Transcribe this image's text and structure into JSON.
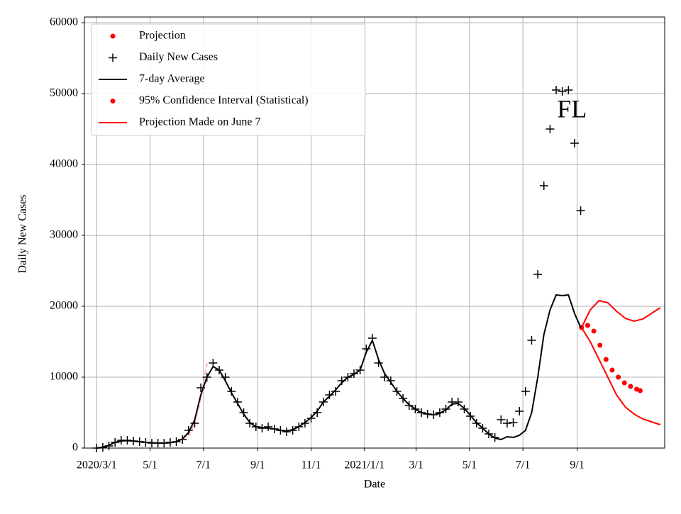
{
  "chart_data": {
    "type": "line",
    "annotation": "FL",
    "annotation_x": "2021-08-26",
    "annotation_y": 47500,
    "x_label": "Date",
    "y_label": "Daily New Cases",
    "xlim": [
      "2020-02-16",
      "2021-12-10"
    ],
    "ylim": [
      0,
      60800
    ],
    "yticks": [
      0,
      10000,
      20000,
      30000,
      40000,
      50000,
      60000
    ],
    "xticks": [
      {
        "value": "2020-03-01",
        "label": "2020/3/1"
      },
      {
        "value": "2020-05-01",
        "label": "5/1"
      },
      {
        "value": "2020-07-01",
        "label": "7/1"
      },
      {
        "value": "2020-09-01",
        "label": "9/1"
      },
      {
        "value": "2020-11-01",
        "label": "11/1"
      },
      {
        "value": "2021-01-01",
        "label": "2021/1/1"
      },
      {
        "value": "2021-03-01",
        "label": "3/1"
      },
      {
        "value": "2021-05-01",
        "label": "5/1"
      },
      {
        "value": "2021-07-01",
        "label": "7/1"
      },
      {
        "value": "2021-09-01",
        "label": "9/1"
      }
    ],
    "grid": true,
    "legend": "upper left",
    "series": [
      {
        "name": "Projection",
        "color": "#ff0000",
        "marker": "dot",
        "x": [
          "2021-09-06",
          "2021-09-13",
          "2021-09-20",
          "2021-09-27",
          "2021-10-04",
          "2021-10-11",
          "2021-10-18",
          "2021-10-25",
          "2021-11-01",
          "2021-11-08",
          "2021-11-12"
        ],
        "values": [
          17000,
          17300,
          16500,
          14500,
          12500,
          11000,
          10000,
          9200,
          8700,
          8300,
          8100
        ]
      },
      {
        "name": "Daily New Cases",
        "color": "#000000",
        "marker": "plus",
        "x": [
          "2020-03-01",
          "2020-03-08",
          "2020-03-15",
          "2020-03-22",
          "2020-03-29",
          "2020-04-05",
          "2020-04-12",
          "2020-04-19",
          "2020-04-26",
          "2020-05-03",
          "2020-05-10",
          "2020-05-17",
          "2020-05-24",
          "2020-05-31",
          "2020-06-07",
          "2020-06-14",
          "2020-06-21",
          "2020-06-28",
          "2020-07-05",
          "2020-07-12",
          "2020-07-19",
          "2020-07-26",
          "2020-08-02",
          "2020-08-09",
          "2020-08-16",
          "2020-08-23",
          "2020-08-30",
          "2020-09-06",
          "2020-09-13",
          "2020-09-20",
          "2020-09-27",
          "2020-10-04",
          "2020-10-11",
          "2020-10-18",
          "2020-10-25",
          "2020-11-01",
          "2020-11-08",
          "2020-11-15",
          "2020-11-22",
          "2020-11-29",
          "2020-12-06",
          "2020-12-13",
          "2020-12-20",
          "2020-12-27",
          "2021-01-03",
          "2021-01-10",
          "2021-01-17",
          "2021-01-24",
          "2021-01-31",
          "2021-02-07",
          "2021-02-14",
          "2021-02-21",
          "2021-02-28",
          "2021-03-07",
          "2021-03-14",
          "2021-03-21",
          "2021-03-28",
          "2021-04-04",
          "2021-04-11",
          "2021-04-18",
          "2021-04-25",
          "2021-05-02",
          "2021-05-09",
          "2021-05-16",
          "2021-05-23",
          "2021-05-30",
          "2021-06-06",
          "2021-06-13",
          "2021-06-20",
          "2021-06-27",
          "2021-07-04",
          "2021-07-11",
          "2021-07-18",
          "2021-07-25",
          "2021-08-01",
          "2021-08-08",
          "2021-08-15",
          "2021-08-22",
          "2021-08-29",
          "2021-09-05"
        ],
        "values": [
          0,
          100,
          300,
          800,
          1100,
          1100,
          1000,
          900,
          800,
          700,
          700,
          700,
          800,
          900,
          1200,
          2500,
          3500,
          8500,
          10000,
          12000,
          11000,
          10000,
          8000,
          6500,
          5000,
          3500,
          3000,
          2800,
          3000,
          2700,
          2500,
          2300,
          2500,
          3000,
          3500,
          4200,
          5000,
          6500,
          7500,
          8000,
          9500,
          10000,
          10500,
          11000,
          14000,
          15500,
          12000,
          10000,
          9500,
          8000,
          7000,
          6000,
          5500,
          5000,
          4800,
          4700,
          5000,
          5500,
          6500,
          6500,
          5500,
          4500,
          3500,
          2800,
          2000,
          1500,
          4000,
          3500,
          3600,
          5200,
          8000,
          15200,
          24500,
          37000,
          45000,
          50500,
          50300,
          50500,
          43000,
          33500
        ]
      },
      {
        "name": "7-day Average",
        "color": "#000000",
        "marker": "line",
        "x": [
          "2020-03-01",
          "2020-03-08",
          "2020-03-15",
          "2020-03-22",
          "2020-03-29",
          "2020-04-05",
          "2020-04-12",
          "2020-04-19",
          "2020-04-26",
          "2020-05-03",
          "2020-05-10",
          "2020-05-17",
          "2020-05-24",
          "2020-05-31",
          "2020-06-07",
          "2020-06-14",
          "2020-06-21",
          "2020-06-28",
          "2020-07-05",
          "2020-07-12",
          "2020-07-19",
          "2020-07-26",
          "2020-08-02",
          "2020-08-09",
          "2020-08-16",
          "2020-08-23",
          "2020-08-30",
          "2020-09-06",
          "2020-09-13",
          "2020-09-20",
          "2020-09-27",
          "2020-10-04",
          "2020-10-11",
          "2020-10-18",
          "2020-10-25",
          "2020-11-01",
          "2020-11-08",
          "2020-11-15",
          "2020-11-22",
          "2020-11-29",
          "2020-12-06",
          "2020-12-13",
          "2020-12-20",
          "2020-12-27",
          "2021-01-03",
          "2021-01-10",
          "2021-01-17",
          "2021-01-24",
          "2021-01-31",
          "2021-02-07",
          "2021-02-14",
          "2021-02-21",
          "2021-02-28",
          "2021-03-07",
          "2021-03-14",
          "2021-03-21",
          "2021-03-28",
          "2021-04-04",
          "2021-04-11",
          "2021-04-18",
          "2021-04-25",
          "2021-05-02",
          "2021-05-09",
          "2021-05-16",
          "2021-05-23",
          "2021-05-30",
          "2021-06-06",
          "2021-06-13",
          "2021-06-20",
          "2021-06-27",
          "2021-07-04",
          "2021-07-11",
          "2021-07-18",
          "2021-07-25",
          "2021-08-01",
          "2021-08-08",
          "2021-08-15",
          "2021-08-22",
          "2021-08-29",
          "2021-09-05"
        ],
        "values": [
          0,
          100,
          400,
          800,
          1000,
          1050,
          1000,
          900,
          800,
          750,
          700,
          700,
          750,
          900,
          1300,
          2200,
          4000,
          7500,
          10000,
          11500,
          11000,
          9500,
          7800,
          6300,
          4800,
          3600,
          3000,
          2900,
          2800,
          2700,
          2500,
          2400,
          2600,
          3000,
          3600,
          4300,
          5200,
          6500,
          7300,
          8200,
          9200,
          10000,
          10400,
          11000,
          13500,
          15200,
          12500,
          10500,
          9300,
          8000,
          7000,
          6100,
          5500,
          5000,
          4800,
          4700,
          4900,
          5400,
          6200,
          6300,
          5600,
          4600,
          3600,
          2800,
          2000,
          1400,
          1200,
          1600,
          1500,
          1800,
          2500,
          5000,
          10000,
          16000,
          19500,
          21600,
          21500,
          21600,
          19000,
          17000
        ]
      },
      {
        "name": "95% Confidence Interval (Statistical)",
        "color": "#ff0000",
        "marker": "dot",
        "x": [
          "2021-09-06",
          "2021-09-16",
          "2021-09-26",
          "2021-10-06",
          "2021-10-16",
          "2021-10-26",
          "2021-11-05",
          "2021-11-15",
          "2021-11-25",
          "2021-12-05"
        ],
        "values": [
          17000,
          19500,
          20800,
          20500,
          19300,
          18300,
          17900,
          18200,
          19000,
          19800
        ],
        "lower": [
          17000,
          15000,
          12500,
          10000,
          7500,
          5800,
          4800,
          4100,
          3700,
          3300
        ]
      },
      {
        "name": "Projection Made on June 7",
        "color": "#ff0000",
        "marker": "line",
        "linestyle": "dashed",
        "alpha": 0.3,
        "x": [
          "2020-06-07",
          "2020-06-14",
          "2020-06-21",
          "2020-06-28",
          "2020-07-05"
        ],
        "values": [
          1200,
          1800,
          3500,
          7000,
          12000
        ]
      }
    ]
  }
}
